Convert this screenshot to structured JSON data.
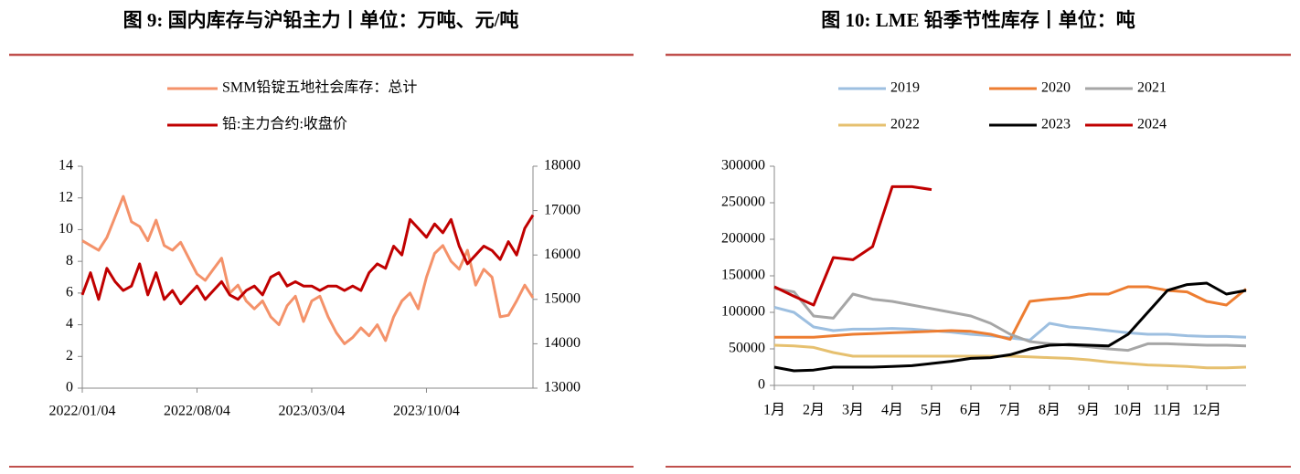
{
  "chart_data": [
    {
      "type": "line",
      "title": "图 9: 国内库存与沪铅主力丨单位：万吨、元/吨",
      "categories": [
        "2022/01/04",
        null,
        null,
        null,
        null,
        null,
        null,
        null,
        null,
        null,
        null,
        null,
        null,
        null,
        "2022/08/04",
        null,
        null,
        null,
        null,
        null,
        null,
        null,
        null,
        null,
        null,
        null,
        null,
        null,
        "2023/03/04",
        null,
        null,
        null,
        null,
        null,
        null,
        null,
        null,
        null,
        null,
        null,
        null,
        null,
        "2023/10/04",
        null,
        null,
        null,
        null,
        null,
        null,
        null,
        null,
        null,
        null,
        null,
        null,
        null
      ],
      "series": [
        {
          "name": "SMM铅锭五地社会库存：总计",
          "color": "#f4926a",
          "axis": "y",
          "values": [
            9.3,
            9.0,
            8.7,
            9.5,
            10.8,
            12.1,
            10.5,
            10.2,
            9.3,
            10.6,
            9.0,
            8.7,
            9.2,
            8.2,
            7.2,
            6.8,
            7.5,
            8.2,
            6.0,
            6.5,
            5.5,
            5.0,
            5.5,
            4.5,
            4.0,
            5.2,
            5.8,
            4.2,
            5.5,
            5.8,
            4.5,
            3.5,
            2.8,
            3.2,
            3.8,
            3.3,
            4.0,
            3.0,
            4.5,
            5.5,
            6.0,
            5.0,
            7.0,
            8.5,
            9.0,
            8.0,
            7.5,
            8.7,
            6.5,
            7.5,
            7.0,
            4.5,
            4.6,
            5.5,
            6.5,
            5.7
          ]
        },
        {
          "name": "铅:主力合约:收盘价",
          "color": "#c00000",
          "axis": "y2",
          "values": [
            15100,
            15600,
            15000,
            15700,
            15400,
            15200,
            15300,
            15800,
            15100,
            15600,
            15000,
            15200,
            14900,
            15100,
            15300,
            15000,
            15200,
            15400,
            15100,
            15000,
            15200,
            15300,
            15100,
            15500,
            15600,
            15300,
            15400,
            15300,
            15300,
            15200,
            15300,
            15300,
            15200,
            15300,
            15200,
            15600,
            15800,
            15700,
            16200,
            16000,
            16800,
            16600,
            16400,
            16700,
            16500,
            16800,
            16200,
            15800,
            16000,
            16200,
            16100,
            15900,
            16300,
            16000,
            16600,
            16900
          ]
        }
      ],
      "ylim": [
        0,
        14
      ],
      "yticks": [
        0,
        2,
        4,
        6,
        8,
        10,
        12,
        14
      ],
      "y2lim": [
        13000,
        18000
      ],
      "y2ticks": [
        13000,
        14000,
        15000,
        16000,
        17000,
        18000
      ]
    },
    {
      "type": "line",
      "title": "图 10: LME 铅季节性库存丨单位：吨",
      "x": [
        1,
        1.5,
        2,
        2.5,
        3,
        3.5,
        4,
        4.5,
        5,
        5.5,
        6,
        6.5,
        7,
        7.5,
        8,
        8.5,
        9,
        9.5,
        10,
        10.5,
        11,
        11.5,
        12,
        12.5,
        13
      ],
      "xlim": [
        1,
        13
      ],
      "xticks": [
        {
          "value": 1,
          "label": "1月"
        },
        {
          "value": 2,
          "label": "2月"
        },
        {
          "value": 3,
          "label": "3月"
        },
        {
          "value": 4,
          "label": "4月"
        },
        {
          "value": 5,
          "label": "5月"
        },
        {
          "value": 6,
          "label": "6月"
        },
        {
          "value": 7,
          "label": "7月"
        },
        {
          "value": 8,
          "label": "8月"
        },
        {
          "value": 9,
          "label": "9月"
        },
        {
          "value": 10,
          "label": "10月"
        },
        {
          "value": 11,
          "label": "11月"
        },
        {
          "value": 12,
          "label": "12月"
        }
      ],
      "ylim": [
        0,
        300000
      ],
      "yticks": [
        0,
        50000,
        100000,
        150000,
        200000,
        250000,
        300000
      ],
      "series": [
        {
          "name": "2019",
          "color": "#9dbfe0",
          "values": [
            107000,
            100000,
            80000,
            75000,
            77000,
            77000,
            78000,
            77000,
            75000,
            73000,
            70000,
            68000,
            65000,
            62000,
            85000,
            80000,
            78000,
            75000,
            72000,
            70000,
            70000,
            68000,
            67000,
            67000,
            66000
          ]
        },
        {
          "name": "2020",
          "color": "#ed7d31",
          "values": [
            66000,
            66000,
            66000,
            68000,
            70000,
            71000,
            72000,
            73000,
            74000,
            75000,
            74000,
            70000,
            63000,
            115000,
            118000,
            120000,
            125000,
            125000,
            135000,
            135000,
            130000,
            128000,
            115000,
            110000,
            132000
          ]
        },
        {
          "name": "2021",
          "color": "#a6a6a6",
          "values": [
            133000,
            128000,
            95000,
            92000,
            125000,
            118000,
            115000,
            110000,
            105000,
            100000,
            95000,
            85000,
            70000,
            60000,
            57000,
            55000,
            53000,
            50000,
            48000,
            57000,
            57000,
            56000,
            55000,
            55000,
            54000
          ]
        },
        {
          "name": "2022",
          "color": "#e6c06f",
          "values": [
            55000,
            54000,
            52000,
            45000,
            40000,
            40000,
            40000,
            40000,
            40000,
            40000,
            40000,
            40000,
            40000,
            39000,
            38000,
            37000,
            35000,
            32000,
            30000,
            28000,
            27000,
            26000,
            24000,
            24000,
            25000
          ]
        },
        {
          "name": "2023",
          "color": "#000000",
          "values": [
            25000,
            20000,
            21000,
            25000,
            25000,
            25000,
            26000,
            27000,
            30000,
            33000,
            37000,
            38000,
            42000,
            50000,
            55000,
            56000,
            55000,
            54000,
            70000,
            100000,
            130000,
            138000,
            140000,
            125000,
            130000
          ]
        },
        {
          "name": "2024",
          "color": "#c00000",
          "values": [
            135000,
            122000,
            110000,
            175000,
            172000,
            190000,
            272000,
            272000,
            268000,
            null,
            null,
            null,
            null,
            null,
            null,
            null,
            null,
            null,
            null,
            null,
            null,
            null,
            null,
            null,
            null
          ]
        }
      ]
    }
  ]
}
